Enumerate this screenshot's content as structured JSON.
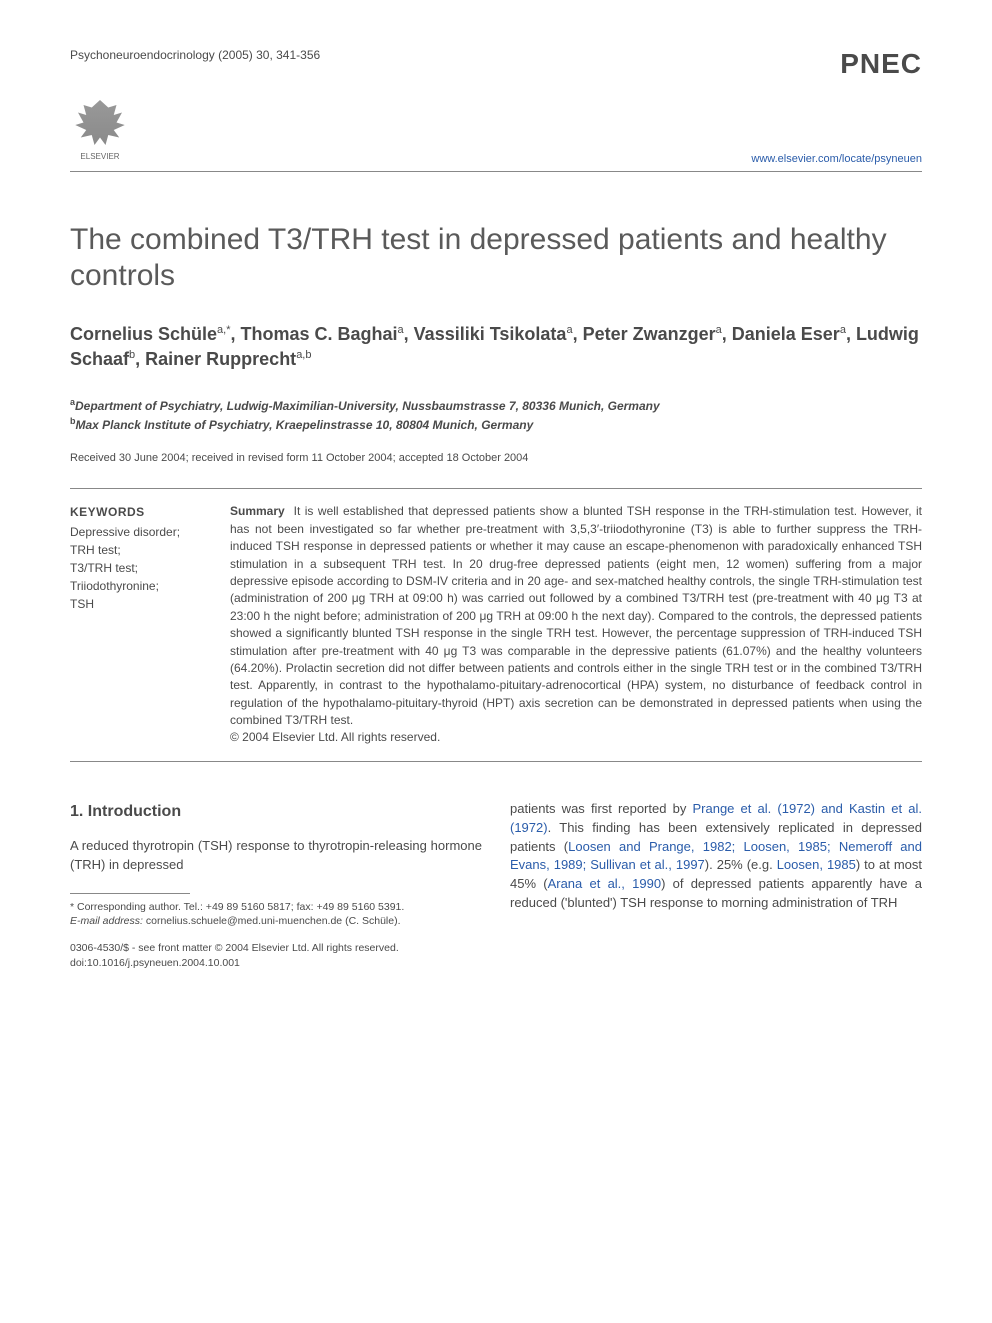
{
  "header": {
    "journal_ref": "Psychoneuroendocrinology (2005) 30, 341-356",
    "pnec": "PNEC",
    "elsevier": "ELSEVIER",
    "locate_url": "www.elsevier.com/locate/psyneuen"
  },
  "title": "The combined T3/TRH test in depressed patients and healthy controls",
  "authors_html": "Cornelius Schüle<sup>a,*</sup>, Thomas C. Baghai<sup>a</sup>, Vassiliki Tsikolata<sup>a</sup>, Peter Zwanzger<sup>a</sup>, Daniela Eser<sup>a</sup>, Ludwig Schaaf<sup>b</sup>, Rainer Rupprecht<sup>a,b</sup>",
  "affiliations": {
    "a": "Department of Psychiatry, Ludwig-Maximilian-University, Nussbaumstrasse 7, 80336 Munich, Germany",
    "b": "Max Planck Institute of Psychiatry, Kraepelinstrasse 10, 80804 Munich, Germany"
  },
  "dates": "Received 30 June 2004; received in revised form 11 October 2004; accepted 18 October 2004",
  "keywords": {
    "heading": "KEYWORDS",
    "items": "Depressive disorder;\nTRH test;\nT3/TRH test;\nTriiodothyronine;\nTSH"
  },
  "summary": {
    "label": "Summary",
    "text": "It is well established that depressed patients show a blunted TSH response in the TRH-stimulation test. However, it has not been investigated so far whether pre-treatment with 3,5,3′-triiodothyronine (T3) is able to further suppress the TRH-induced TSH response in depressed patients or whether it may cause an escape-phenomenon with paradoxically enhanced TSH stimulation in a subsequent TRH test. In 20 drug-free depressed patients (eight men, 12 women) suffering from a major depressive episode according to DSM-IV criteria and in 20 age- and sex-matched healthy controls, the single TRH-stimulation test (administration of 200 μg TRH at 09:00 h) was carried out followed by a combined T3/TRH test (pre-treatment with 40 μg T3 at 23:00 h the night before; administration of 200 μg TRH at 09:00 h the next day). Compared to the controls, the depressed patients showed a significantly blunted TSH response in the single TRH test. However, the percentage suppression of TRH-induced TSH stimulation after pre-treatment with 40 μg T3 was comparable in the depressive patients (61.07%) and the healthy volunteers (64.20%). Prolactin secretion did not differ between patients and controls either in the single TRH test or in the combined T3/TRH test. Apparently, in contrast to the hypothalamo-pituitary-adrenocortical (HPA) system, no disturbance of feedback control in regulation of the hypothalamo-pituitary-thyroid (HPT) axis secretion can be demonstrated in depressed patients when using the combined T3/TRH test.",
    "copyright": "© 2004 Elsevier Ltd. All rights reserved."
  },
  "intro": {
    "heading": "1. Introduction",
    "left_para": "A reduced thyrotropin (TSH) response to thyrotropin-releasing hormone (TRH) in depressed",
    "right_para_parts": {
      "p1": "patients was first reported by ",
      "r1": "Prange et al. (1972) and Kastin et al. (1972)",
      "p2": ". This finding has been extensively replicated in depressed patients (",
      "r2": "Loosen and Prange, 1982; Loosen, 1985; Nemeroff and Evans, 1989; Sullivan et al., 1997",
      "p3": "). 25% (e.g. ",
      "r3": "Loosen, 1985",
      "p4": ") to at most 45% (",
      "r4": "Arana et al., 1990",
      "p5": ") of depressed patients apparently have a reduced ('blunted') TSH response to morning administration of TRH"
    }
  },
  "footnotes": {
    "corr": "* Corresponding author. Tel.: +49 89 5160 5817; fax: +49 89 5160 5391.",
    "email_label": "E-mail address:",
    "email": "cornelius.schuele@med.uni-muenchen.de",
    "email_name": "(C. Schüle)."
  },
  "doi": {
    "line1": "0306-4530/$ - see front matter © 2004 Elsevier Ltd. All rights reserved.",
    "line2": "doi:10.1016/j.psyneuen.2004.10.001"
  },
  "colors": {
    "text": "#4a4a4a",
    "link": "#2a5caa",
    "rule": "#888888",
    "background": "#ffffff"
  }
}
